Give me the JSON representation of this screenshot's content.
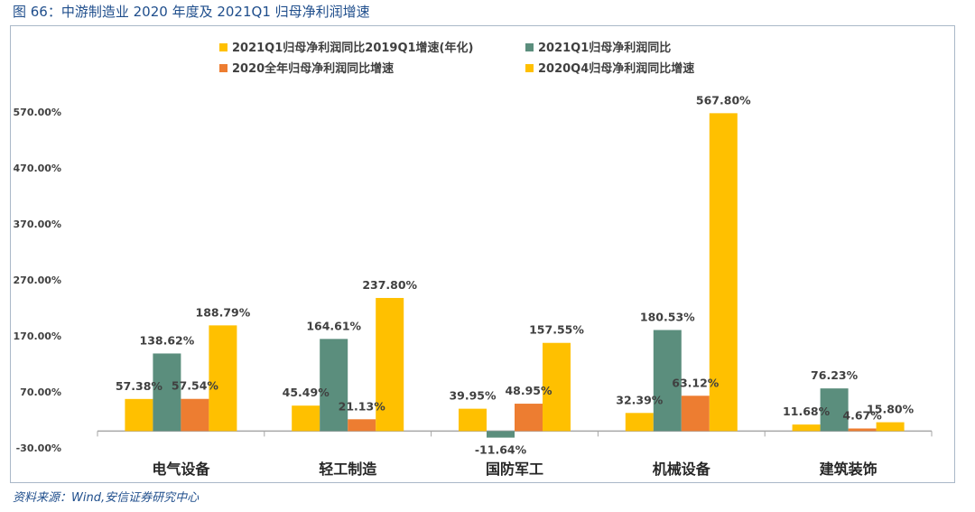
{
  "caption": "图 66：中游制造业 2020 年度及 2021Q1 归母净利润增速",
  "source": "资料来源：Wind,安信证券研究中心",
  "colors": {
    "s1": "#FFC000",
    "s2": "#5B8E7D",
    "s3": "#ED7D31",
    "s4": "#FFC000",
    "text": "#404040",
    "axis": "#A6A6A6"
  },
  "chart_data": {
    "type": "bar",
    "title": "",
    "categories": [
      "电气设备",
      "轻工制造",
      "国防军工",
      "机械设备",
      "建筑装饰"
    ],
    "ylim": [
      -30,
      570
    ],
    "yticks": [
      -30,
      70,
      170,
      270,
      370,
      470,
      570
    ],
    "ytick_labels": [
      "-30.00%",
      "70.00%",
      "170.00%",
      "270.00%",
      "370.00%",
      "470.00%",
      "570.00%"
    ],
    "grid": false,
    "legend_position": "top",
    "series": [
      {
        "name": "2021Q1归母净利润同比2019Q1增速(年化)",
        "values": [
          57.38,
          45.49,
          39.95,
          32.39,
          11.68
        ],
        "labels": [
          "57.38%",
          "45.49%",
          "39.95%",
          "32.39%",
          "11.68%"
        ]
      },
      {
        "name": "2021Q1归母净利润同比",
        "values": [
          138.62,
          164.61,
          -11.64,
          180.53,
          76.23
        ],
        "labels": [
          "138.62%",
          "164.61%",
          "-11.64%",
          "180.53%",
          "76.23%"
        ]
      },
      {
        "name": "2020全年归母净利润同比增速",
        "values": [
          57.54,
          21.13,
          48.95,
          63.12,
          4.67
        ],
        "labels": [
          "57.54%",
          "21.13%",
          "48.95%",
          "63.12%",
          "4.67%"
        ]
      },
      {
        "name": "2020Q4归母净利润同比增速",
        "values": [
          188.79,
          237.8,
          157.55,
          567.8,
          15.8
        ],
        "labels": [
          "188.79%",
          "237.80%",
          "157.55%",
          "567.80%",
          "15.80%"
        ]
      }
    ]
  }
}
